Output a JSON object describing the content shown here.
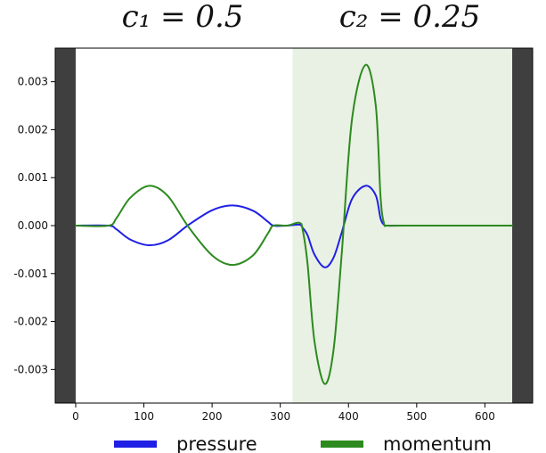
{
  "chart_data": {
    "type": "line",
    "header_labels": [
      "c₁ = 0.5",
      "c₂ = 0.25"
    ],
    "xlim": [
      -30,
      670
    ],
    "ylim": [
      -0.0037,
      0.0037
    ],
    "x_ticks": [
      0,
      100,
      200,
      300,
      400,
      500,
      600
    ],
    "x_tick_labels": [
      "0",
      "100",
      "200",
      "300",
      "400",
      "500",
      "600"
    ],
    "y_ticks": [
      0.003,
      0.002,
      0.001,
      0.0,
      -0.001,
      -0.002,
      -0.003
    ],
    "y_tick_labels": [
      "0.003",
      "0.002",
      "0.001",
      "0.000",
      "-0.001",
      "-0.002",
      "-0.003"
    ],
    "regions": [
      {
        "x0": -30,
        "x1": 0,
        "color": "#3f3f3f"
      },
      {
        "x0": 318,
        "x1": 640,
        "color": "#e8f1e3"
      },
      {
        "x0": 640,
        "x1": 670,
        "color": "#3f3f3f"
      }
    ],
    "series": [
      {
        "name": "pressure",
        "color": "#1f1fe6",
        "x": [
          0,
          48,
          60,
          80,
          108,
          135,
          165,
          200,
          230,
          260,
          282,
          290,
          310,
          328,
          333,
          340,
          350,
          365,
          378,
          390,
          405,
          425,
          440,
          447,
          452,
          457,
          480,
          540,
          600,
          640
        ],
        "y": [
          0,
          0,
          -8e-05,
          -0.00029,
          -0.00041,
          -0.00031,
          1e-05,
          0.00032,
          0.00042,
          0.00031,
          8e-05,
          0,
          0,
          2e-05,
          -5e-05,
          -0.0002,
          -0.0006,
          -0.00087,
          -0.00067,
          -0.00015,
          0.00055,
          0.00083,
          0.00063,
          0.00015,
          2e-05,
          0,
          0,
          0,
          0,
          0
        ]
      },
      {
        "name": "momentum",
        "color": "#2d8a1f",
        "x": [
          0,
          48,
          60,
          80,
          108,
          135,
          165,
          200,
          230,
          260,
          282,
          290,
          310,
          328,
          333,
          340,
          350,
          365,
          378,
          390,
          405,
          425,
          440,
          447,
          452,
          457,
          480,
          540,
          600,
          640
        ],
        "y": [
          0,
          0,
          0.00016,
          0.00058,
          0.00083,
          0.00062,
          -2e-05,
          -0.00062,
          -0.00082,
          -0.00062,
          -0.00016,
          0,
          0,
          6e-05,
          -0.0001,
          -0.0008,
          -0.0024,
          -0.0033,
          -0.0026,
          -0.0006,
          0.0022,
          0.00335,
          0.0025,
          0.0006,
          5e-05,
          0,
          0,
          0,
          0,
          0
        ]
      }
    ],
    "legend": {
      "placement": "bottom"
    }
  }
}
